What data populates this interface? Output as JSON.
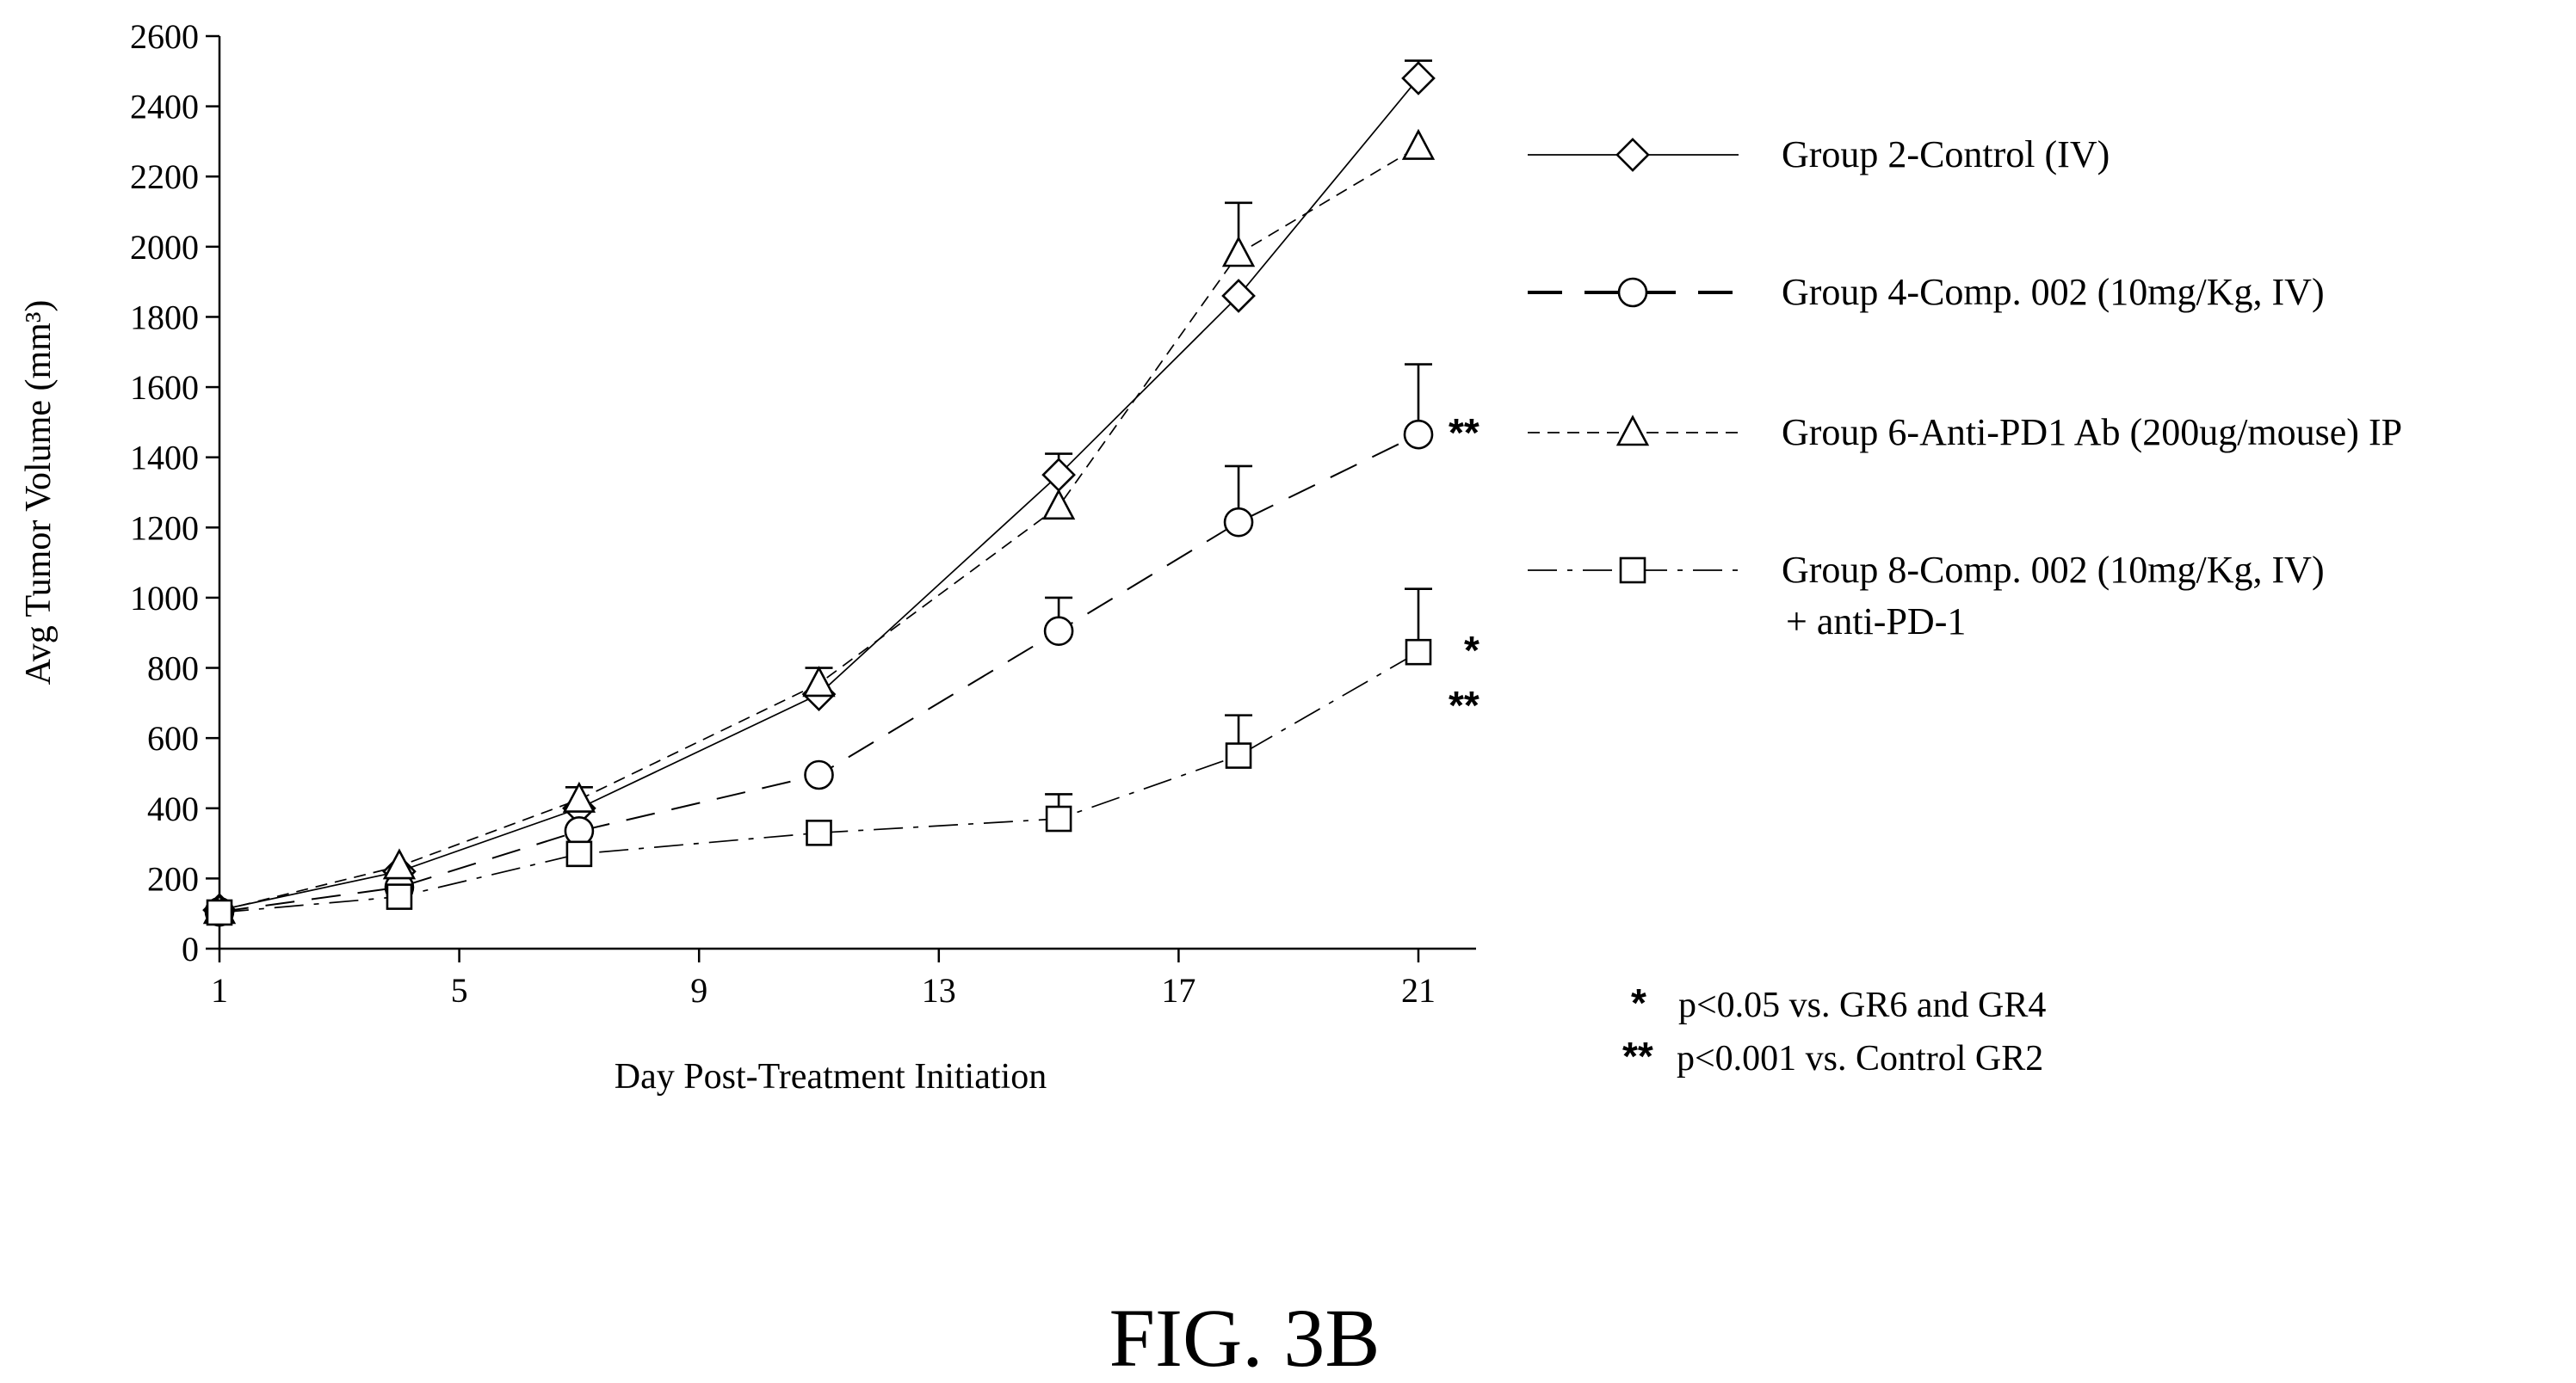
{
  "chart_data": {
    "type": "line",
    "xlabel": "Day Post-Treatment Initiation",
    "ylabel": "Avg Tumor Volume (mm³)",
    "xlim": [
      1,
      22
    ],
    "ylim": [
      0,
      2600
    ],
    "xticks": [
      1,
      5,
      9,
      13,
      17,
      21
    ],
    "yticks": [
      0,
      200,
      400,
      600,
      800,
      1000,
      1200,
      1400,
      1600,
      1800,
      2000,
      2200,
      2400,
      2600
    ],
    "legend_position": "right",
    "grid": false,
    "series": [
      {
        "name": "Group 2-Control (IV)",
        "marker": "diamond",
        "line_style": "solid",
        "x": [
          1,
          4,
          7,
          11,
          15,
          18,
          21
        ],
        "y": [
          110,
          220,
          400,
          725,
          1350,
          1860,
          2480
        ],
        "error_upper": [
          null,
          null,
          null,
          null,
          1410,
          null,
          2530
        ]
      },
      {
        "name": "Group 4-Comp. 002 (10mg/Kg, IV)",
        "marker": "circle",
        "line_style": "dashed",
        "x": [
          1,
          4,
          7,
          11,
          15,
          18,
          21
        ],
        "y": [
          105,
          175,
          335,
          495,
          905,
          1215,
          1465
        ],
        "error_upper": [
          null,
          null,
          null,
          null,
          1000,
          1375,
          1665
        ]
      },
      {
        "name": "Group 6-Anti-PD1 Ab (200ug/mouse) IP",
        "marker": "triangle",
        "line_style": "short-dashed",
        "x": [
          1,
          4,
          7,
          11,
          15,
          18,
          21
        ],
        "y": [
          108,
          235,
          425,
          755,
          1260,
          1980,
          2285
        ],
        "error_upper": [
          null,
          null,
          460,
          800,
          null,
          2125,
          null
        ]
      },
      {
        "name": "Group 8-Comp. 002 (10mg/Kg, IV)",
        "name_line2": "+ anti-PD-1",
        "marker": "square",
        "line_style": "dash-dot",
        "x": [
          1,
          4,
          7,
          11,
          15,
          18,
          21
        ],
        "y": [
          103,
          148,
          270,
          330,
          370,
          550,
          845
        ],
        "error_upper": [
          null,
          null,
          null,
          null,
          440,
          665,
          1025
        ]
      }
    ],
    "annotations": [
      {
        "text": "**",
        "x": 21,
        "y": 1465,
        "series": 1
      },
      {
        "text": "*",
        "x": 21,
        "y": 845,
        "series": 3
      },
      {
        "text": "**",
        "x": 21,
        "y": 845,
        "series": 3,
        "row": 2
      }
    ],
    "footnotes": [
      {
        "symbol": "*",
        "text": "p<0.05  vs. GR6 and GR4"
      },
      {
        "symbol": "**",
        "text": "p<0.001 vs. Control GR2"
      }
    ],
    "figure_label": "FIG. 3B"
  }
}
